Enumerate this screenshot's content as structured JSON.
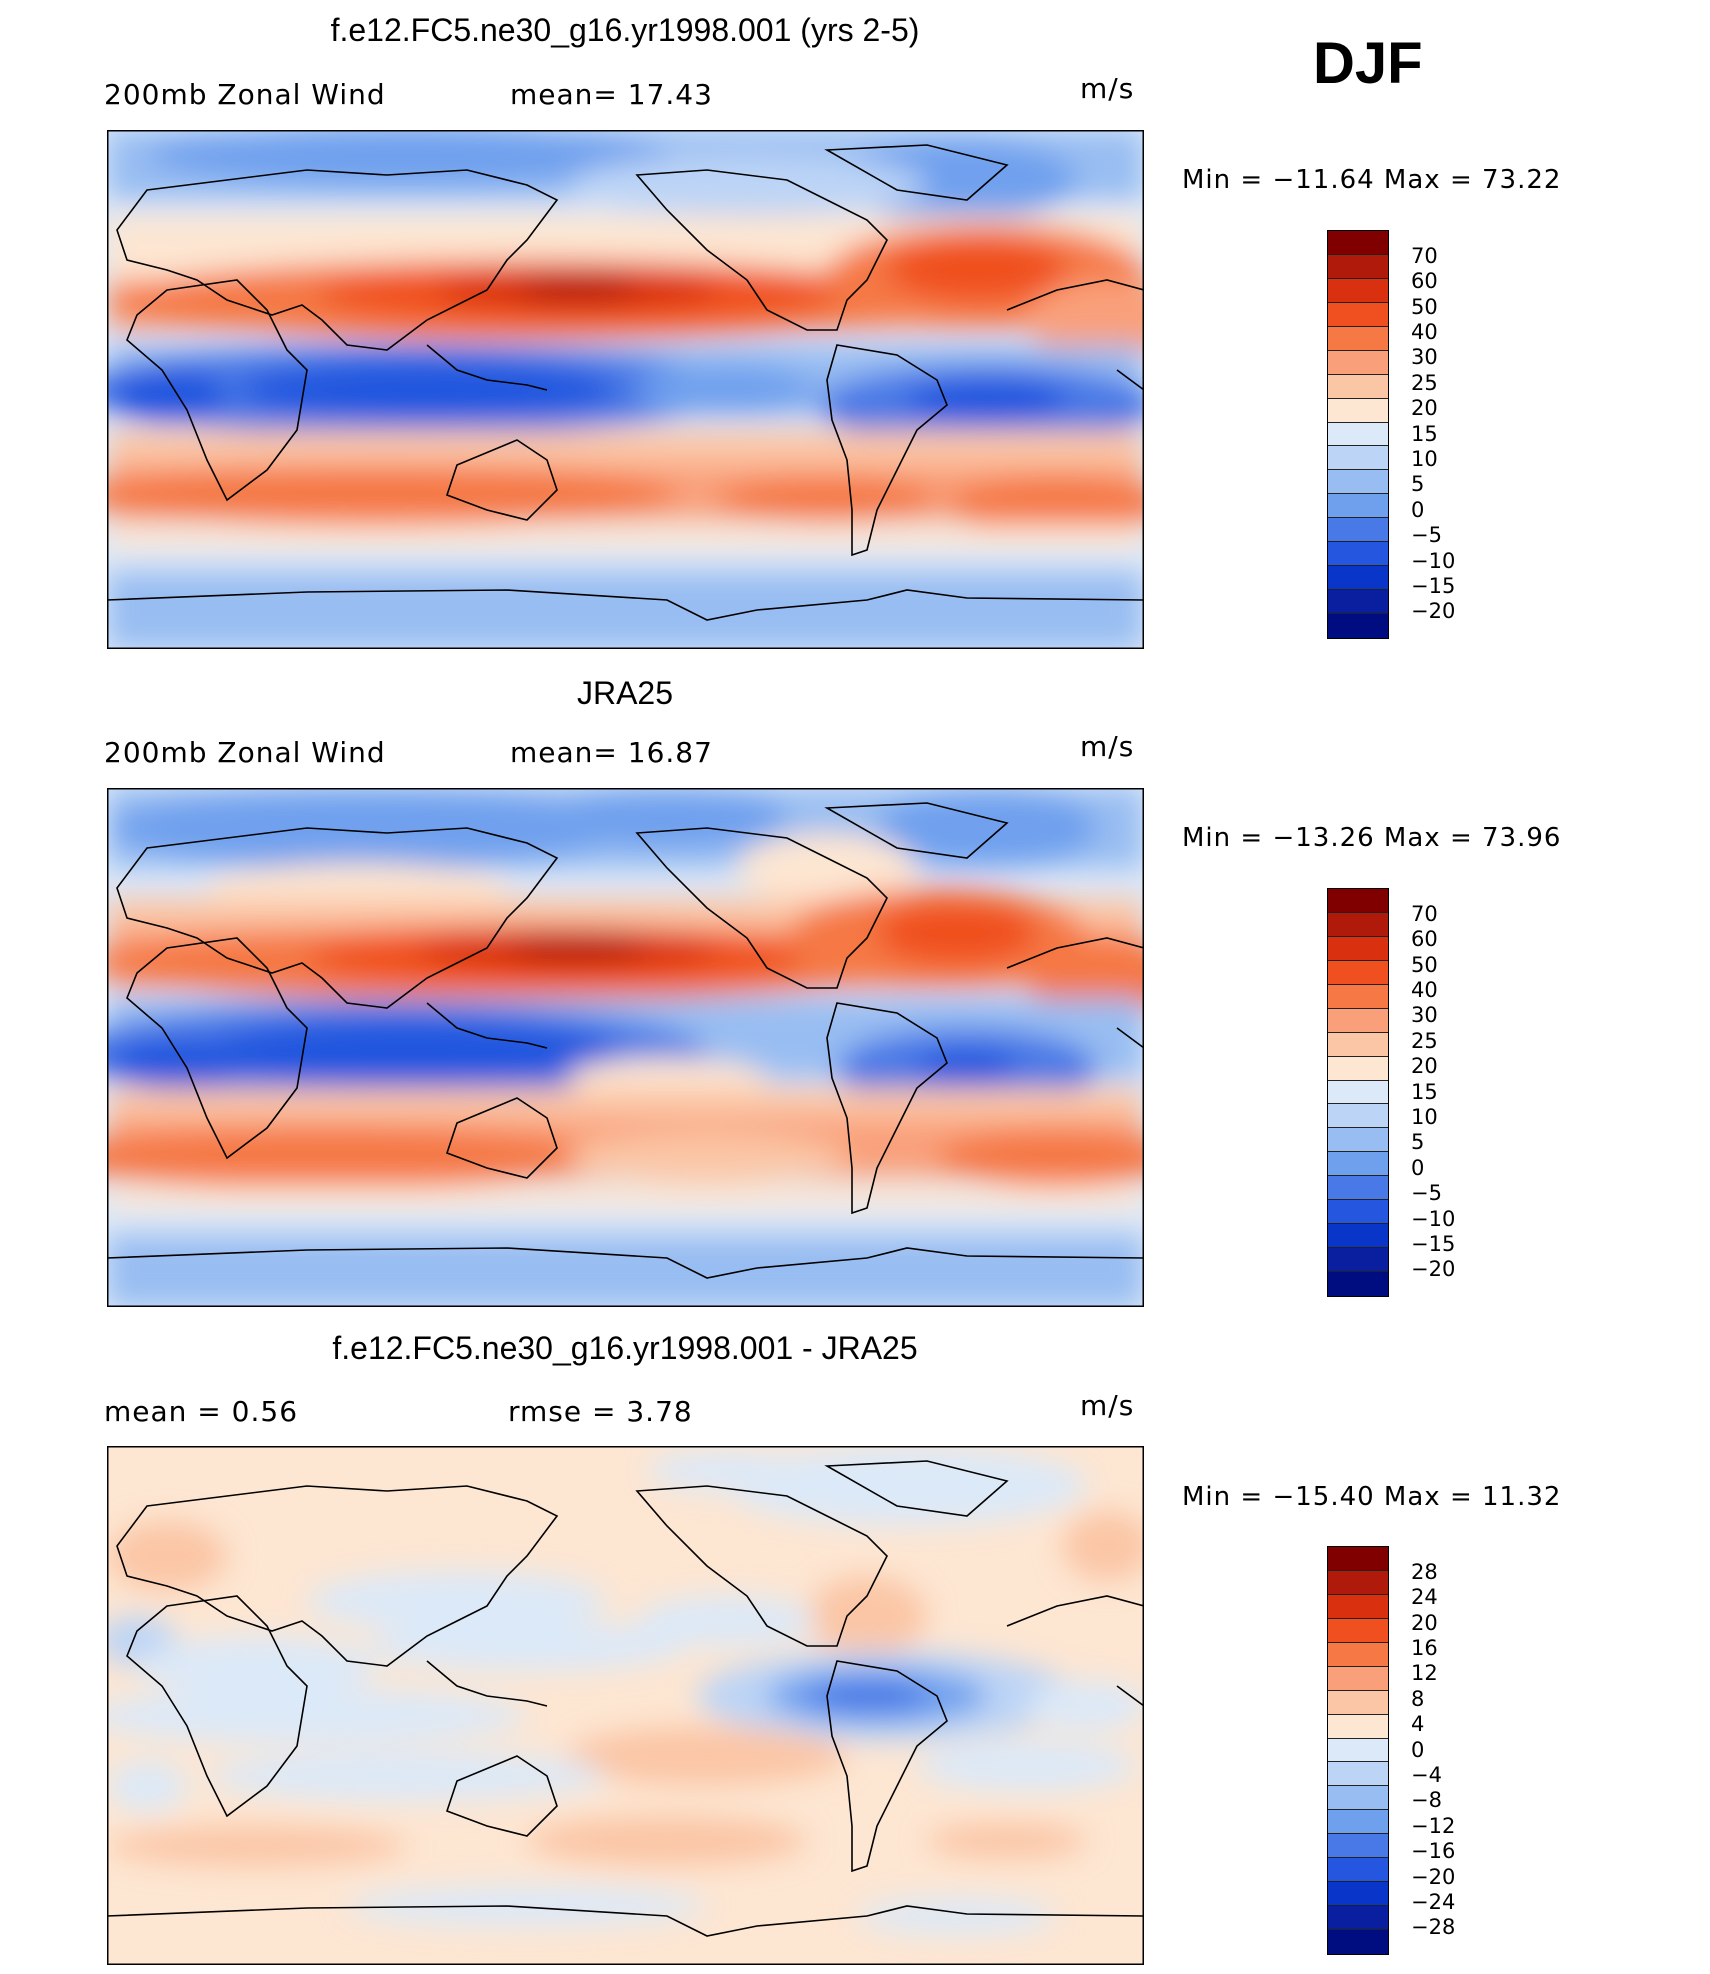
{
  "season": "DJF",
  "units": "m/s",
  "panels": [
    {
      "title": "f.e12.FC5.ne30_g16.yr1998.001 (yrs 2-5)",
      "left_label": "200mb Zonal Wind",
      "center_label": "mean=  17.43",
      "min_max": "Min  =  −11.64  Max  =    73.22",
      "colorbar_levels": [
        "70",
        "60",
        "50",
        "40",
        "30",
        "25",
        "20",
        "15",
        "10",
        "5",
        "0",
        "−5",
        "−10",
        "−15",
        "−20"
      ]
    },
    {
      "title": "JRA25",
      "left_label": "200mb Zonal Wind",
      "center_label": "mean=  16.87",
      "min_max": "Min  =  −13.26  Max  =    73.96",
      "colorbar_levels": [
        "70",
        "60",
        "50",
        "40",
        "30",
        "25",
        "20",
        "15",
        "10",
        "5",
        "0",
        "−5",
        "−10",
        "−15",
        "−20"
      ]
    },
    {
      "title": "f.e12.FC5.ne30_g16.yr1998.001 - JRA25",
      "left_label": "mean =    0.56",
      "center_label": "rmse =    3.78",
      "min_max": "Min  =  −15.40  Max  =    11.32",
      "colorbar_levels": [
        "28",
        "24",
        "20",
        "16",
        "12",
        "8",
        "4",
        "0",
        "−4",
        "−8",
        "−12",
        "−16",
        "−20",
        "−24",
        "−28"
      ]
    }
  ],
  "colorbar_colors": [
    "#800000",
    "#b01a0a",
    "#d9300f",
    "#f0501f",
    "#f57845",
    "#f9a07a",
    "#fbc6a6",
    "#fde6d2",
    "#dce9f8",
    "#bcd4f6",
    "#98bdf2",
    "#6fa0ee",
    "#4879e6",
    "#2456df",
    "#0935c8",
    "#0a1fa0",
    "#000d80"
  ]
}
